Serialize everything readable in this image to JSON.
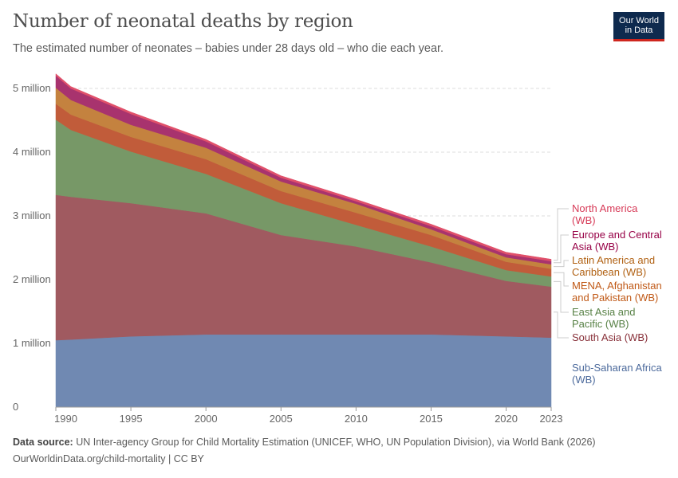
{
  "header": {
    "title": "Number of neonatal deaths by region",
    "subtitle": "The estimated number of neonates – babies under 28 days old – who die each year.",
    "logo": "Our World in Data"
  },
  "footer": {
    "source_label": "Data source:",
    "source": "UN Inter-agency Group for Child Mortality Estimation (UNICEF, WHO, UN Population Division), via World Bank (2026)",
    "url": "OurWorldinData.org/child-mortality | CC BY"
  },
  "chart_data": {
    "type": "area",
    "stacked": true,
    "title": "Number of neonatal deaths by region",
    "xlim": [
      1990,
      2023
    ],
    "ylim": [
      0,
      5250000
    ],
    "grid": true,
    "legend_placement": "right",
    "x": [
      1990,
      1991,
      1995,
      2000,
      2005,
      2010,
      2015,
      2020,
      2023
    ],
    "x_ticks": [
      "1990",
      "1995",
      "2000",
      "2005",
      "2010",
      "2015",
      "2020",
      "2023"
    ],
    "y_ticks": [
      {
        "v": 0,
        "label": "0"
      },
      {
        "v": 1000000,
        "label": "1 million"
      },
      {
        "v": 2000000,
        "label": "2 million"
      },
      {
        "v": 3000000,
        "label": "3 million"
      },
      {
        "v": 4000000,
        "label": "4 million"
      },
      {
        "v": 5000000,
        "label": "5 million"
      }
    ],
    "series": [
      {
        "name": "Sub-Saharan Africa (WB)",
        "color": "#7089b2",
        "label_color": "#4c6a9c",
        "values": [
          1050000,
          1060000,
          1110000,
          1140000,
          1140000,
          1140000,
          1140000,
          1110000,
          1090000
        ]
      },
      {
        "name": "South Asia (WB)",
        "color": "#a05a60",
        "label_color": "#883039",
        "values": [
          2280000,
          2240000,
          2090000,
          1900000,
          1560000,
          1380000,
          1130000,
          870000,
          800000
        ]
      },
      {
        "name": "East Asia and Pacific (WB)",
        "color": "#779867",
        "label_color": "#578145",
        "values": [
          1180000,
          1050000,
          810000,
          620000,
          500000,
          340000,
          250000,
          170000,
          160000
        ]
      },
      {
        "name": "MENA, Afghanistan and Pakistan (WB)",
        "color": "#c15c3a",
        "label_color": "#c05917",
        "values": [
          250000,
          240000,
          230000,
          230000,
          190000,
          190000,
          180000,
          130000,
          120000
        ]
      },
      {
        "name": "Latin America and Caribbean (WB)",
        "color": "#c4823f",
        "label_color": "#b16214",
        "values": [
          250000,
          230000,
          190000,
          180000,
          150000,
          140000,
          90000,
          70000,
          70000
        ]
      },
      {
        "name": "Europe and Central Asia (WB)",
        "color": "#a8336e",
        "label_color": "#970046",
        "values": [
          190000,
          180000,
          170000,
          100000,
          60000,
          40000,
          50000,
          50000,
          50000
        ]
      },
      {
        "name": "North America (WB)",
        "color": "#e0506a",
        "label_color": "#d73b58",
        "values": [
          30000,
          30000,
          30000,
          30000,
          30000,
          30000,
          30000,
          30000,
          30000
        ]
      }
    ]
  }
}
